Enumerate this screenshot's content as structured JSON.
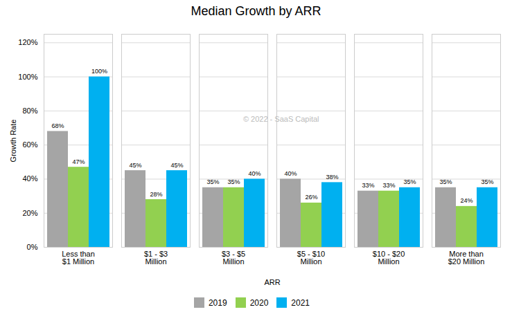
{
  "chart_data": {
    "type": "bar",
    "title": "Median Growth by ARR",
    "xlabel": "ARR",
    "ylabel": "Growth Rate",
    "categories": [
      "Less than\n$1 Million",
      "$1 - $3\nMillion",
      "$3 - $5\nMillion",
      "$5 - $10\nMillion",
      "$10 - $20\nMillion",
      "More than\n$20 Million"
    ],
    "series": [
      {
        "name": "2019",
        "color": "#A5A5A5",
        "values": [
          0.68,
          0.45,
          0.35,
          0.4,
          0.33,
          0.35
        ],
        "value_labels": [
          "68%",
          "45%",
          "35%",
          "40%",
          "33%",
          "35%"
        ]
      },
      {
        "name": "2020",
        "color": "#92D050",
        "values": [
          0.47,
          0.28,
          0.35,
          0.26,
          0.33,
          0.24
        ],
        "value_labels": [
          "47%",
          "28%",
          "35%",
          "26%",
          "33%",
          "24%"
        ]
      },
      {
        "name": "2021",
        "color": "#00B0F0",
        "values": [
          1.0,
          0.45,
          0.4,
          0.38,
          0.35,
          0.35
        ],
        "value_labels": [
          "100%",
          "45%",
          "40%",
          "38%",
          "35%",
          "35%"
        ]
      }
    ],
    "ylim": [
      0,
      1.25
    ],
    "yticks": [
      {
        "value": 0,
        "label": "0%"
      },
      {
        "value": 0.2,
        "label": "20%"
      },
      {
        "value": 0.4,
        "label": "40%"
      },
      {
        "value": 0.6,
        "label": "60%"
      },
      {
        "value": 0.8,
        "label": "80%"
      },
      {
        "value": 1.0,
        "label": "100%"
      },
      {
        "value": 1.2,
        "label": "120%"
      }
    ],
    "grid": true,
    "legend": "bottom",
    "data_labels": true,
    "annotations": [
      "© 2022 - SaaS Capital"
    ]
  }
}
